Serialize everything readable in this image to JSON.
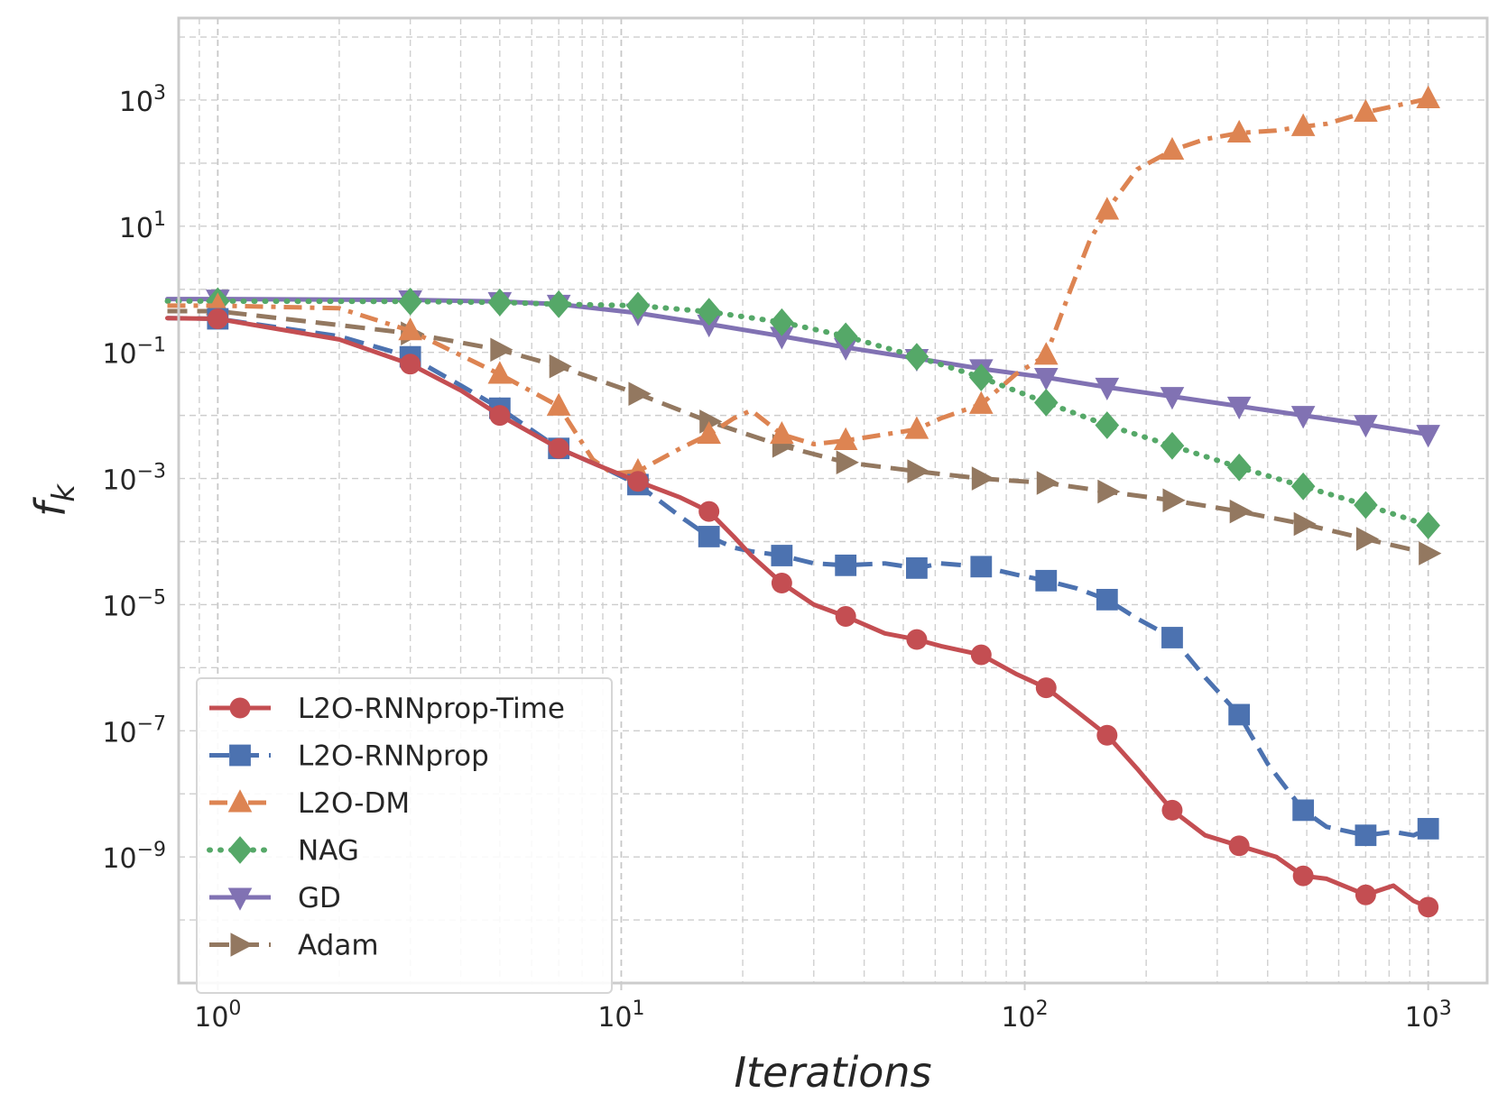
{
  "chart_data": {
    "type": "line",
    "xscale": "log",
    "yscale": "log",
    "xlim": [
      0.8,
      1400
    ],
    "ylim": [
      1e-11,
      20000.0
    ],
    "xlabel": "Iterations",
    "ylabel_base": "f",
    "ylabel_sub": "k",
    "grid": true,
    "legend_position": "lower-left",
    "x_ticks": [
      {
        "value": 1,
        "base": "10",
        "exp": "0"
      },
      {
        "value": 10,
        "base": "10",
        "exp": "1"
      },
      {
        "value": 100,
        "base": "10",
        "exp": "2"
      },
      {
        "value": 1000,
        "base": "10",
        "exp": "3"
      }
    ],
    "y_ticks": [
      {
        "value": 1000.0,
        "base": "10",
        "exp": "3"
      },
      {
        "value": 10,
        "base": "10",
        "exp": "1"
      },
      {
        "value": 0.1,
        "base": "10",
        "exp": "−1"
      },
      {
        "value": 0.001,
        "base": "10",
        "exp": "−3"
      },
      {
        "value": 1e-05,
        "base": "10",
        "exp": "−5"
      },
      {
        "value": 1e-07,
        "base": "10",
        "exp": "−7"
      },
      {
        "value": 1e-09,
        "base": "10",
        "exp": "−9"
      }
    ],
    "series": [
      {
        "name": "L2O-RNNprop-Time",
        "color": "#c44e52",
        "marker": "circle",
        "dash": "solid",
        "x": [
          0.75,
          1,
          2,
          3,
          4,
          5,
          7,
          9,
          11,
          14,
          16.5,
          19,
          21,
          25,
          30,
          36,
          45,
          54,
          62,
          78,
          95,
          113,
          135,
          160,
          190,
          232,
          280,
          340,
          420,
          490,
          560,
          700,
          820,
          920,
          1000
        ],
        "y": [
          0.35,
          0.34,
          0.16,
          0.065,
          0.025,
          0.01,
          0.003,
          0.0015,
          0.0009,
          0.0005,
          0.0003,
          0.00012,
          6e-05,
          2.2e-05,
          1e-05,
          6.5e-06,
          3.5e-06,
          2.8e-06,
          2.2e-06,
          1.6e-06,
          8e-07,
          4.8e-07,
          2e-07,
          8.5e-08,
          2.5e-08,
          5.5e-09,
          2.2e-09,
          1.5e-09,
          1e-09,
          5e-10,
          4.5e-10,
          2.5e-10,
          3.5e-10,
          2e-10,
          1.6e-10
        ],
        "marker_x": [
          1,
          3,
          5,
          7,
          11,
          16.5,
          25,
          36,
          54,
          78,
          113,
          160,
          232,
          340,
          490,
          700,
          1000
        ],
        "marker_y": [
          0.34,
          0.065,
          0.01,
          0.003,
          0.0009,
          0.0003,
          2.2e-05,
          6.5e-06,
          2.8e-06,
          1.6e-06,
          4.8e-07,
          8.5e-08,
          5.5e-09,
          1.5e-09,
          5e-10,
          2.5e-10,
          1.6e-10
        ]
      },
      {
        "name": "L2O-RNNprop",
        "color": "#4c72b0",
        "marker": "square",
        "dash": "dashed",
        "x": [
          0.75,
          1,
          2,
          3,
          4,
          5,
          7,
          9,
          11,
          14,
          16.5,
          19,
          21,
          25,
          30,
          36,
          45,
          54,
          62,
          78,
          95,
          113,
          135,
          160,
          190,
          232,
          280,
          340,
          400,
          490,
          560,
          700,
          820,
          920,
          1000
        ],
        "y": [
          0.35,
          0.34,
          0.18,
          0.085,
          0.03,
          0.013,
          0.003,
          0.0015,
          0.0008,
          0.00025,
          0.00012,
          8e-05,
          7e-05,
          6e-05,
          4.5e-05,
          4.2e-05,
          4.5e-05,
          3.8e-05,
          4.5e-05,
          4e-05,
          3e-05,
          2.4e-05,
          1.8e-05,
          1.2e-05,
          6e-06,
          3e-06,
          7e-07,
          1.8e-07,
          3e-08,
          5.5e-09,
          3e-09,
          2.2e-09,
          2.5e-09,
          2.2e-09,
          2.8e-09
        ],
        "marker_x": [
          1,
          3,
          5,
          7,
          11,
          16.5,
          25,
          36,
          54,
          78,
          113,
          160,
          232,
          340,
          490,
          700,
          1000
        ],
        "marker_y": [
          0.34,
          0.085,
          0.013,
          0.003,
          0.0008,
          0.00012,
          6e-05,
          4.2e-05,
          3.8e-05,
          4e-05,
          2.4e-05,
          1.2e-05,
          3e-06,
          1.8e-07,
          5.5e-09,
          2.2e-09,
          2.8e-09
        ]
      },
      {
        "name": "L2O-DM",
        "color": "#dd8452",
        "marker": "triangle-up",
        "dash": "dashdot",
        "x": [
          0.75,
          1,
          2,
          3,
          4,
          5,
          7,
          8.5,
          9.5,
          11,
          14,
          16.5,
          19,
          21,
          25,
          30,
          36,
          45,
          54,
          62,
          78,
          95,
          113,
          130,
          145,
          160,
          190,
          232,
          280,
          340,
          420,
          490,
          560,
          700,
          820,
          1000
        ],
        "y": [
          0.55,
          0.55,
          0.5,
          0.22,
          0.09,
          0.045,
          0.014,
          0.002,
          0.0012,
          0.0013,
          0.003,
          0.005,
          0.009,
          0.012,
          0.005,
          0.0035,
          0.004,
          0.005,
          0.006,
          0.009,
          0.015,
          0.045,
          0.09,
          1,
          6,
          18,
          80,
          160,
          240,
          300,
          330,
          380,
          420,
          640,
          800,
          1050
        ],
        "marker_x": [
          1,
          3,
          5,
          7,
          11,
          16.5,
          25,
          36,
          54,
          78,
          113,
          160,
          232,
          340,
          490,
          700,
          1000
        ],
        "marker_y": [
          0.55,
          0.22,
          0.045,
          0.014,
          0.0013,
          0.005,
          0.005,
          0.004,
          0.006,
          0.015,
          0.09,
          18,
          160,
          300,
          380,
          640,
          1050
        ]
      },
      {
        "name": "NAG",
        "color": "#55a868",
        "marker": "diamond",
        "dash": "dotted",
        "x": [
          0.75,
          1,
          3,
          5,
          7,
          11,
          16.5,
          25,
          36,
          54,
          78,
          113,
          160,
          232,
          340,
          490,
          700,
          1000
        ],
        "y": [
          0.65,
          0.65,
          0.64,
          0.62,
          0.58,
          0.55,
          0.44,
          0.3,
          0.18,
          0.085,
          0.04,
          0.016,
          0.007,
          0.0033,
          0.0015,
          0.00075,
          0.00038,
          0.00018
        ],
        "marker_x": [
          1,
          3,
          5,
          7,
          11,
          16.5,
          25,
          36,
          54,
          78,
          113,
          160,
          232,
          340,
          490,
          700,
          1000
        ],
        "marker_y": [
          0.65,
          0.64,
          0.62,
          0.58,
          0.55,
          0.44,
          0.3,
          0.18,
          0.085,
          0.04,
          0.016,
          0.007,
          0.0033,
          0.0015,
          0.00075,
          0.00038,
          0.00018
        ]
      },
      {
        "name": "GD",
        "color": "#8172b3",
        "marker": "triangle-down",
        "dash": "solid",
        "x": [
          0.75,
          1,
          3,
          5,
          7,
          11,
          16.5,
          25,
          36,
          54,
          78,
          113,
          160,
          232,
          340,
          490,
          700,
          1000
        ],
        "y": [
          0.7,
          0.7,
          0.68,
          0.64,
          0.58,
          0.42,
          0.28,
          0.18,
          0.12,
          0.08,
          0.055,
          0.04,
          0.028,
          0.02,
          0.014,
          0.01,
          0.0072,
          0.005
        ],
        "marker_x": [
          1,
          3,
          5,
          7,
          11,
          16.5,
          25,
          36,
          54,
          78,
          113,
          160,
          232,
          340,
          490,
          700,
          1000
        ],
        "marker_y": [
          0.7,
          0.68,
          0.64,
          0.58,
          0.42,
          0.28,
          0.18,
          0.12,
          0.08,
          0.055,
          0.04,
          0.028,
          0.02,
          0.014,
          0.01,
          0.0072,
          0.005
        ]
      },
      {
        "name": "Adam",
        "color": "#937860",
        "marker": "triangle-right",
        "dash": "dashed",
        "x": [
          0.75,
          1,
          3,
          5,
          7,
          11,
          16.5,
          25,
          36,
          54,
          78,
          113,
          160,
          232,
          340,
          490,
          700,
          1000
        ],
        "y": [
          0.45,
          0.45,
          0.2,
          0.11,
          0.06,
          0.022,
          0.008,
          0.0033,
          0.0018,
          0.0013,
          0.001,
          0.00085,
          0.00062,
          0.00045,
          0.0003,
          0.00019,
          0.00011,
          6.5e-05
        ],
        "marker_x": [
          1,
          3,
          5,
          7,
          11,
          16.5,
          25,
          36,
          54,
          78,
          113,
          160,
          232,
          340,
          490,
          700,
          1000
        ],
        "marker_y": [
          0.45,
          0.2,
          0.11,
          0.06,
          0.022,
          0.008,
          0.0033,
          0.0018,
          0.0013,
          0.001,
          0.00085,
          0.00062,
          0.00045,
          0.0003,
          0.00019,
          0.00011,
          6.5e-05
        ]
      }
    ]
  }
}
